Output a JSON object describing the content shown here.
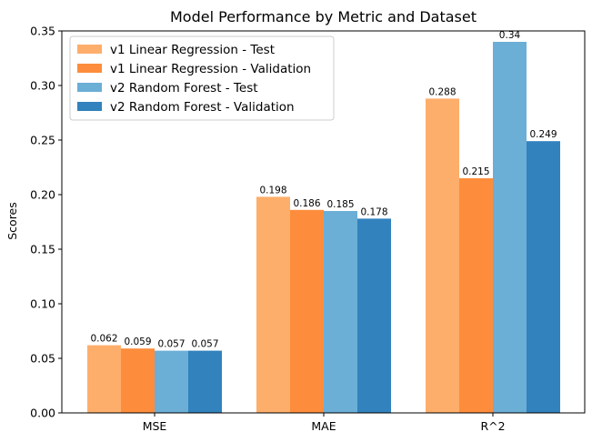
{
  "chart_data": {
    "type": "bar",
    "title": "Model Performance by Metric and Dataset",
    "xlabel": "",
    "ylabel": "Scores",
    "categories": [
      "MSE",
      "MAE",
      "R^2"
    ],
    "ylim": [
      0,
      0.35
    ],
    "yticks": [
      "0.00",
      "0.05",
      "0.10",
      "0.15",
      "0.20",
      "0.25",
      "0.30",
      "0.35"
    ],
    "grid": false,
    "legend_position": "top-left",
    "series": [
      {
        "name": "v1 Linear Regression - Test",
        "color": "#fdae6b",
        "values": [
          0.062,
          0.198,
          0.288
        ]
      },
      {
        "name": "v1 Linear Regression - Validation",
        "color": "#fd8d3c",
        "values": [
          0.059,
          0.186,
          0.215
        ]
      },
      {
        "name": "v2 Random Forest - Test",
        "color": "#6baed6",
        "values": [
          0.057,
          0.185,
          0.34
        ]
      },
      {
        "name": "v2 Random Forest - Validation",
        "color": "#3182bd",
        "values": [
          0.057,
          0.178,
          0.249
        ]
      }
    ]
  }
}
